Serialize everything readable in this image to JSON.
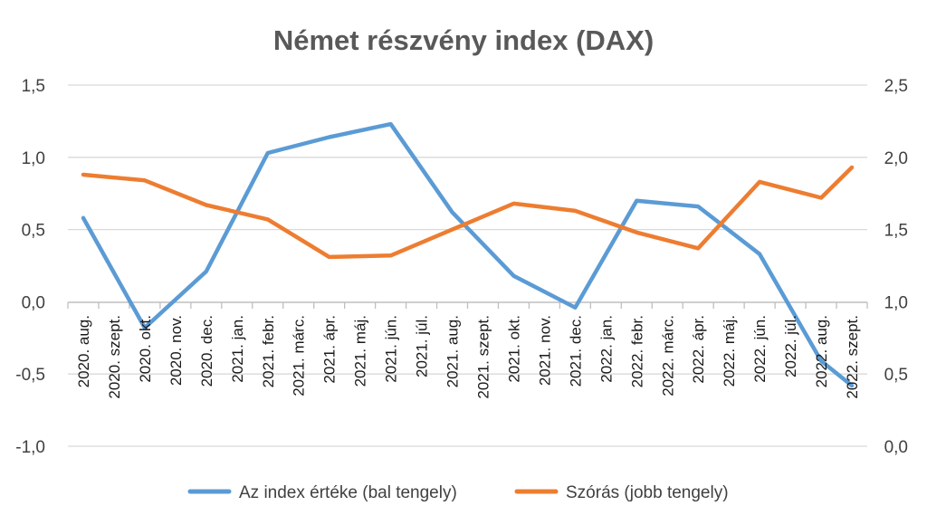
{
  "chart_data": {
    "type": "line",
    "title": "Német részvény index (DAX)",
    "categories": [
      "2020. aug.",
      "2020. szept.",
      "2020. okt.",
      "2020. nov.",
      "2020. dec.",
      "2021. jan.",
      "2021. febr.",
      "2021. márc.",
      "2021. ápr.",
      "2021. máj.",
      "2021. jún.",
      "2021. júl.",
      "2021. aug.",
      "2021. szept.",
      "2021. okt.",
      "2021. nov.",
      "2021. dec.",
      "2022. jan.",
      "2022. febr.",
      "2022. márc.",
      "2022. ápr.",
      "2022. máj.",
      "2022. jún.",
      "2022. júl.",
      "2022. aug.",
      "2022. szept."
    ],
    "left_axis": {
      "min": -1.0,
      "max": 1.5,
      "step": 0.5,
      "tick_labels": [
        "-1,0",
        "-0,5",
        "0,0",
        "0,5",
        "1,0",
        "1,5"
      ]
    },
    "right_axis": {
      "min": 0.0,
      "max": 2.5,
      "step": 0.5,
      "tick_labels": [
        "0,0",
        "0,5",
        "1,0",
        "1,5",
        "2,0",
        "2,5"
      ]
    },
    "series": [
      {
        "name": "Az index értéke (bal tengely)",
        "axis": "left",
        "color": "#5B9BD5",
        "x": [
          "2020. aug.",
          "2020. okt.",
          "2020. dec.",
          "2021. febr.",
          "2021. ápr.",
          "2021. jún.",
          "2021. aug.",
          "2021. okt.",
          "2021. dec.",
          "2022. febr.",
          "2022. ápr.",
          "2022. jún.",
          "2022. aug."
        ],
        "values": [
          0.58,
          -0.18,
          0.21,
          1.03,
          1.14,
          1.23,
          0.62,
          0.18,
          -0.04,
          0.7,
          0.66,
          0.33,
          -0.41
        ]
      },
      {
        "name": "Szórás (jobb tengely)",
        "axis": "right",
        "color": "#ED7D31",
        "x": [
          "2020. aug.",
          "2020. okt.",
          "2020. dec.",
          "2021. febr.",
          "2021. ápr.",
          "2021. jún.",
          "2021. aug.",
          "2021. okt.",
          "2021. dec.",
          "2022. febr.",
          "2022. ápr.",
          "2022. jún.",
          "2022. aug."
        ],
        "values": [
          1.88,
          1.84,
          1.67,
          1.57,
          1.31,
          1.32,
          1.5,
          1.68,
          1.63,
          1.48,
          1.37,
          1.83,
          1.72
        ]
      }
    ],
    "tail_points": {
      "note": "",
      "index_last": -0.58,
      "std_last": 1.93
    },
    "legend": {
      "position": "bottom"
    },
    "grid": true
  }
}
